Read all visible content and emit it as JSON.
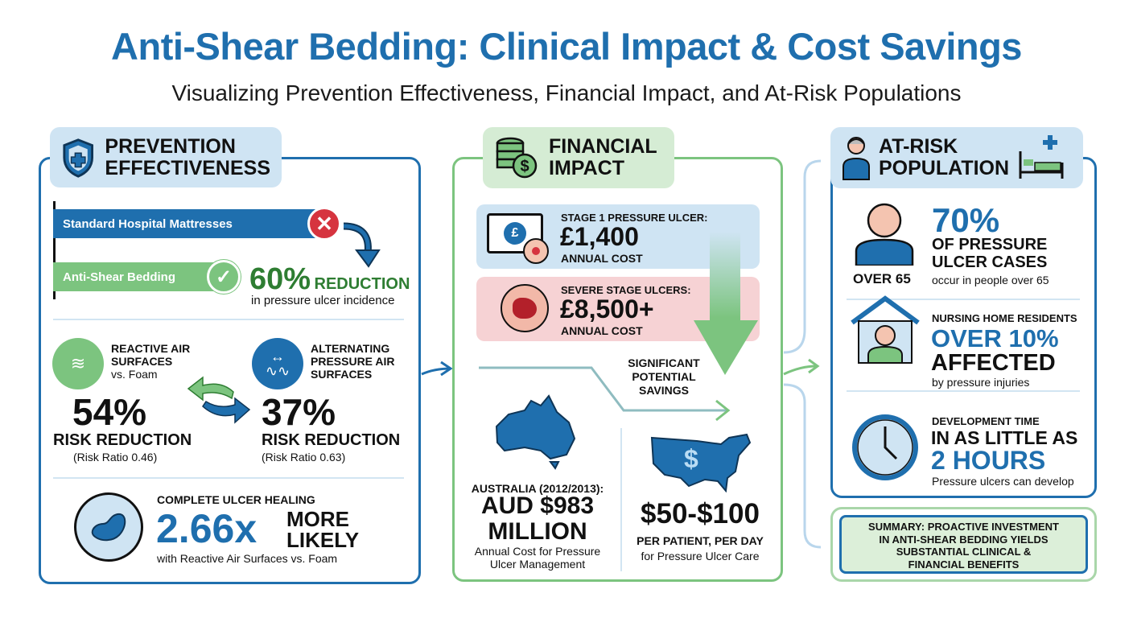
{
  "header": {
    "title": "Anti-Shear Bedding: Clinical Impact & Cost Savings",
    "subtitle": "Visualizing Prevention Effectiveness, Financial Impact, and At-Risk Populations"
  },
  "prevention": {
    "heading_1": "PREVENTION",
    "heading_2": "EFFECTIVENESS",
    "bar_standard": "Standard Hospital Mattresses",
    "bar_antishear": "Anti-Shear Bedding",
    "reduction_value": "60%",
    "reduction_label": "REDUCTION",
    "reduction_caption": "in pressure ulcer incidence",
    "reactive": {
      "l1": "REACTIVE AIR",
      "l2": "SURFACES",
      "l3": "vs. Foam",
      "value": "54%",
      "label": "RISK REDUCTION",
      "ratio": "(Risk Ratio 0.46)"
    },
    "alternating": {
      "l1": "ALTERNATING",
      "l2": "PRESSURE AIR",
      "l3": "SURFACES",
      "value": "37%",
      "label": "RISK REDUCTION",
      "ratio": "(Risk Ratio 0.63)"
    },
    "healing": {
      "label": "COMPLETE ULCER HEALING",
      "value": "2.66x",
      "more": "MORE",
      "likely": "LIKELY",
      "caption": "with Reactive Air Surfaces vs. Foam"
    }
  },
  "financial": {
    "heading_1": "FINANCIAL",
    "heading_2": "IMPACT",
    "stage1": {
      "label": "STAGE 1 PRESSURE ULCER:",
      "value": "£1,400",
      "caption": "ANNUAL COST"
    },
    "severe": {
      "label": "SEVERE STAGE ULCERS:",
      "value": "£8,500+",
      "caption": "ANNUAL COST"
    },
    "savings": [
      "SIGNIFICANT",
      "POTENTIAL",
      "SAVINGS"
    ],
    "australia": {
      "label": "AUSTRALIA (2012/2013):",
      "value_1": "AUD $983",
      "value_2": "MILLION",
      "caption_1": "Annual Cost for Pressure",
      "caption_2": "Ulcer Management"
    },
    "usa": {
      "value": "$50-$100",
      "label": "PER PATIENT, PER DAY",
      "caption": "for Pressure Ulcer Care",
      "map_symbol": "$"
    }
  },
  "atrisk": {
    "heading_1": "AT-RISK",
    "heading_2": "POPULATION",
    "age": {
      "icon_label": "OVER 65",
      "value": "70%",
      "l1": "OF PRESSURE",
      "l2": "ULCER CASES",
      "caption": "occur in people over 65"
    },
    "nursing": {
      "label": "NURSING HOME RESIDENTS",
      "value": "OVER 10%",
      "affected": "AFFECTED",
      "caption": "by pressure injuries"
    },
    "time": {
      "label": "DEVELOPMENT TIME",
      "l1": "IN AS LITTLE AS",
      "value": "2 HOURS",
      "caption": "Pressure ulcers can develop"
    },
    "summary": [
      "SUMMARY: PROACTIVE INVESTMENT",
      "IN ANTI-SHEAR BEDDING YIELDS",
      "SUBSTANTIAL CLINICAL &",
      "FINANCIAL BENEFITS"
    ]
  },
  "colors": {
    "blue": "#1f6fae",
    "green": "#7cc47f",
    "dark_green": "#2e7d32",
    "red": "#d6343f",
    "light_blue": "#cfe4f3",
    "light_green": "#d5ecd4",
    "light_red": "#f6d2d4"
  }
}
